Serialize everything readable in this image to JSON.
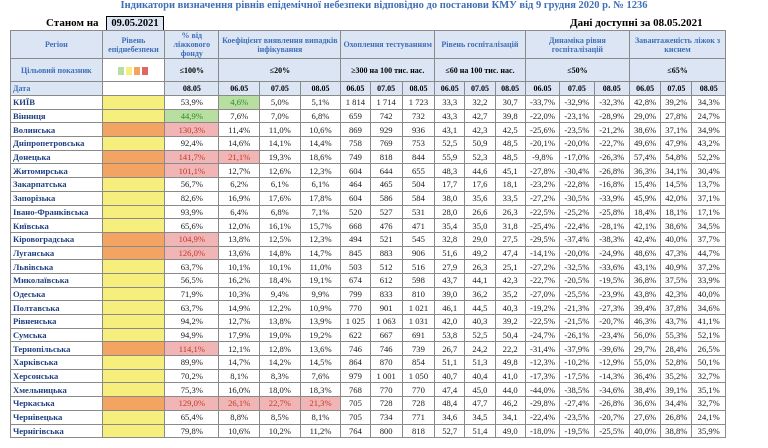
{
  "header": {
    "title": "Індикатори визначення рівнів епідемічної небезпеки відповідно до постанови КМУ від 9 грудня 2020 р. № 1236",
    "as_of_label": "Станом на",
    "as_of_date": "09.05.2021",
    "data_available_label": "Дані доступні за",
    "data_available_date": "08.05.2021"
  },
  "columns": {
    "region": "Регіон",
    "level": "Рівень епіднебезпеки",
    "beds_pct": "% від ліжкового фонду",
    "detection_rate": "Коефіцієнт виявлення випадків інфікування",
    "testing": "Охоплення тестуванням",
    "hospitalization": "Рівень госпіталізацій",
    "hosp_dynamics": "Динаміка рівня госпіталізацій",
    "oxygen_beds": "Завантаженість ліжок з киснем"
  },
  "target_row": {
    "label": "Цільовий показник",
    "beds_pct": "≤100%",
    "detection_rate": "≤20%",
    "testing": "≥300 на 100 тис. нас.",
    "hospitalization": "≤60 на 100 тис. нас.",
    "hosp_dynamics": "≤50%",
    "oxygen_beds": "≤65%"
  },
  "date_row": {
    "label": "Дата",
    "beds_pct": "08.05",
    "dates": [
      "06.05",
      "07.05",
      "08.05"
    ]
  },
  "swatch_colors": [
    "#b9dea1",
    "#f6ee7d",
    "#f4a462",
    "#e06666"
  ],
  "level_colors": {
    "y": "#f6ee7d",
    "o": "#f4a462"
  },
  "rows": [
    {
      "region": "КИЇВ",
      "level": "y",
      "beds": "53,9%",
      "det": [
        "4,6%",
        "5,0%",
        "5,1%"
      ],
      "test": [
        "1 814",
        "1 714",
        "1 723"
      ],
      "hosp": [
        "33,3",
        "32,2",
        "30,7"
      ],
      "dyn": [
        "-33,7%",
        "-32,9%",
        "-32,3%"
      ],
      "oxy": [
        "42,8%",
        "39,2%",
        "34,3%"
      ],
      "hl": {
        "det0": "g"
      }
    },
    {
      "region": "Вінниця",
      "level": "y",
      "beds": "44,9%",
      "det": [
        "7,6%",
        "7,0%",
        "6,8%"
      ],
      "test": [
        "659",
        "742",
        "732"
      ],
      "hosp": [
        "43,3",
        "42,7",
        "39,8"
      ],
      "dyn": [
        "-22,0%",
        "-23,1%",
        "-28,9%"
      ],
      "oxy": [
        "29,0%",
        "27,8%",
        "24,7%"
      ],
      "hl": {
        "beds": "g"
      }
    },
    {
      "region": "Волинська",
      "level": "o",
      "beds": "130,3%",
      "det": [
        "11,4%",
        "11,0%",
        "10,6%"
      ],
      "test": [
        "869",
        "929",
        "936"
      ],
      "hosp": [
        "43,1",
        "42,3",
        "42,5"
      ],
      "dyn": [
        "-25,6%",
        "-23,5%",
        "-21,2%"
      ],
      "oxy": [
        "38,6%",
        "37,1%",
        "34,9%"
      ],
      "hl": {
        "beds": "r"
      }
    },
    {
      "region": "Дніпропетровська",
      "level": "y",
      "beds": "92,4%",
      "det": [
        "14,6%",
        "14,1%",
        "14,4%"
      ],
      "test": [
        "758",
        "769",
        "753"
      ],
      "hosp": [
        "52,5",
        "50,9",
        "48,5"
      ],
      "dyn": [
        "-20,1%",
        "-20,0%",
        "-22,7%"
      ],
      "oxy": [
        "49,6%",
        "47,9%",
        "43,2%"
      ],
      "hl": {}
    },
    {
      "region": "Донецька",
      "level": "o",
      "beds": "141,7%",
      "det": [
        "21,1%",
        "19,3%",
        "18,6%"
      ],
      "test": [
        "749",
        "818",
        "844"
      ],
      "hosp": [
        "55,9",
        "52,3",
        "48,5"
      ],
      "dyn": [
        "-9,8%",
        "-17,0%",
        "-26,3%"
      ],
      "oxy": [
        "57,4%",
        "54,8%",
        "52,2%"
      ],
      "hl": {
        "beds": "r",
        "det0": "r"
      }
    },
    {
      "region": "Житомирська",
      "level": "o",
      "beds": "101,1%",
      "det": [
        "12,7%",
        "12,6%",
        "12,3%"
      ],
      "test": [
        "604",
        "644",
        "655"
      ],
      "hosp": [
        "48,3",
        "44,6",
        "45,1"
      ],
      "dyn": [
        "-27,8%",
        "-30,4%",
        "-26,8%"
      ],
      "oxy": [
        "36,3%",
        "34,1%",
        "30,4%"
      ],
      "hl": {
        "beds": "r"
      }
    },
    {
      "region": "Закарпатська",
      "level": "y",
      "beds": "56,7%",
      "det": [
        "6,2%",
        "6,1%",
        "6,1%"
      ],
      "test": [
        "464",
        "465",
        "504"
      ],
      "hosp": [
        "17,7",
        "17,6",
        "18,1"
      ],
      "dyn": [
        "-23,2%",
        "-22,8%",
        "-16,8%"
      ],
      "oxy": [
        "15,4%",
        "14,5%",
        "13,7%"
      ],
      "hl": {}
    },
    {
      "region": "Запорізька",
      "level": "y",
      "beds": "82,6%",
      "det": [
        "16,9%",
        "17,6%",
        "17,8%"
      ],
      "test": [
        "604",
        "586",
        "584"
      ],
      "hosp": [
        "38,0",
        "35,6",
        "33,5"
      ],
      "dyn": [
        "-27,2%",
        "-30,5%",
        "-33,9%"
      ],
      "oxy": [
        "45,9%",
        "42,0%",
        "37,1%"
      ],
      "hl": {}
    },
    {
      "region": "Івано-Франківська",
      "level": "y",
      "beds": "93,9%",
      "det": [
        "6,4%",
        "6,8%",
        "7,1%"
      ],
      "test": [
        "520",
        "527",
        "531"
      ],
      "hosp": [
        "28,0",
        "26,6",
        "26,3"
      ],
      "dyn": [
        "-22,5%",
        "-25,2%",
        "-25,8%"
      ],
      "oxy": [
        "18,4%",
        "18,1%",
        "17,1%"
      ],
      "hl": {}
    },
    {
      "region": "Київська",
      "level": "y",
      "beds": "65,6%",
      "det": [
        "12,0%",
        "16,1%",
        "15,7%"
      ],
      "test": [
        "668",
        "476",
        "471"
      ],
      "hosp": [
        "35,4",
        "35,0",
        "31,8"
      ],
      "dyn": [
        "-25,4%",
        "-22,4%",
        "-28,1%"
      ],
      "oxy": [
        "42,1%",
        "38,6%",
        "34,5%"
      ],
      "hl": {}
    },
    {
      "region": "Кіровоградська",
      "level": "o",
      "beds": "104,9%",
      "det": [
        "13,8%",
        "12,5%",
        "12,3%"
      ],
      "test": [
        "494",
        "521",
        "545"
      ],
      "hosp": [
        "32,8",
        "29,0",
        "27,5"
      ],
      "dyn": [
        "-29,5%",
        "-37,4%",
        "-38,3%"
      ],
      "oxy": [
        "42,4%",
        "40,0%",
        "37,7%"
      ],
      "hl": {
        "beds": "r"
      }
    },
    {
      "region": "Луганська",
      "level": "o",
      "beds": "126,0%",
      "det": [
        "13,6%",
        "14,8%",
        "14,7%"
      ],
      "test": [
        "845",
        "883",
        "906"
      ],
      "hosp": [
        "51,6",
        "49,2",
        "47,4"
      ],
      "dyn": [
        "-14,1%",
        "-20,0%",
        "-24,9%"
      ],
      "oxy": [
        "48,6%",
        "47,3%",
        "44,7%"
      ],
      "hl": {
        "beds": "r"
      }
    },
    {
      "region": "Львівська",
      "level": "y",
      "beds": "63,7%",
      "det": [
        "10,1%",
        "10,1%",
        "11,0%"
      ],
      "test": [
        "503",
        "512",
        "516"
      ],
      "hosp": [
        "27,9",
        "26,3",
        "25,1"
      ],
      "dyn": [
        "-27,2%",
        "-32,5%",
        "-33,6%"
      ],
      "oxy": [
        "43,1%",
        "40,9%",
        "37,2%"
      ],
      "hl": {}
    },
    {
      "region": "Миколаївська",
      "level": "y",
      "beds": "56,5%",
      "det": [
        "16,2%",
        "18,4%",
        "19,1%"
      ],
      "test": [
        "674",
        "612",
        "598"
      ],
      "hosp": [
        "43,7",
        "44,1",
        "42,3"
      ],
      "dyn": [
        "-22,7%",
        "-20,5%",
        "-19,5%"
      ],
      "oxy": [
        "36,8%",
        "37,5%",
        "33,9%"
      ],
      "hl": {}
    },
    {
      "region": "Одеська",
      "level": "y",
      "beds": "71,9%",
      "det": [
        "10,3%",
        "9,4%",
        "9,9%"
      ],
      "test": [
        "799",
        "833",
        "810"
      ],
      "hosp": [
        "39,0",
        "36,2",
        "35,2"
      ],
      "dyn": [
        "-27,0%",
        "-25,5%",
        "-23,9%"
      ],
      "oxy": [
        "43,8%",
        "42,3%",
        "40,0%"
      ],
      "hl": {}
    },
    {
      "region": "Полтавська",
      "level": "y",
      "beds": "63,7%",
      "det": [
        "14,9%",
        "12,2%",
        "10,9%"
      ],
      "test": [
        "770",
        "901",
        "1 021"
      ],
      "hosp": [
        "46,1",
        "44,5",
        "40,3"
      ],
      "dyn": [
        "-19,2%",
        "-21,3%",
        "-27,3%"
      ],
      "oxy": [
        "39,4%",
        "37,8%",
        "34,6%"
      ],
      "hl": {}
    },
    {
      "region": "Рівненська",
      "level": "y",
      "beds": "94,2%",
      "det": [
        "12,7%",
        "13,8%",
        "13,9%"
      ],
      "test": [
        "1 025",
        "1 063",
        "1 031"
      ],
      "hosp": [
        "42,0",
        "40,3",
        "39,2"
      ],
      "dyn": [
        "-22,5%",
        "-21,5%",
        "-20,7%"
      ],
      "oxy": [
        "46,3%",
        "43,7%",
        "41,1%"
      ],
      "hl": {}
    },
    {
      "region": "Сумська",
      "level": "y",
      "beds": "94,9%",
      "det": [
        "17,9%",
        "19,0%",
        "19,2%"
      ],
      "test": [
        "622",
        "667",
        "691"
      ],
      "hosp": [
        "53,8",
        "52,5",
        "50,4"
      ],
      "dyn": [
        "-24,7%",
        "-26,1%",
        "-23,4%"
      ],
      "oxy": [
        "56,0%",
        "55,3%",
        "52,1%"
      ],
      "hl": {}
    },
    {
      "region": "Тернопільська",
      "level": "o",
      "beds": "114,1%",
      "det": [
        "12,1%",
        "12,8%",
        "13,6%"
      ],
      "test": [
        "746",
        "746",
        "739"
      ],
      "hosp": [
        "26,7",
        "24,2",
        "22,2"
      ],
      "dyn": [
        "-31,4%",
        "-37,9%",
        "-39,6%"
      ],
      "oxy": [
        "29,7%",
        "28,4%",
        "26,5%"
      ],
      "hl": {
        "beds": "r"
      }
    },
    {
      "region": "Харківська",
      "level": "y",
      "beds": "89,9%",
      "det": [
        "14,7%",
        "14,2%",
        "14,5%"
      ],
      "test": [
        "864",
        "870",
        "854"
      ],
      "hosp": [
        "51,1",
        "51,3",
        "49,8"
      ],
      "dyn": [
        "-12,3%",
        "-10,2%",
        "-12,9%"
      ],
      "oxy": [
        "55,0%",
        "52,8%",
        "50,1%"
      ],
      "hl": {}
    },
    {
      "region": "Херсонська",
      "level": "y",
      "beds": "70,2%",
      "det": [
        "8,1%",
        "8,3%",
        "7,6%"
      ],
      "test": [
        "979",
        "1 001",
        "1 050"
      ],
      "hosp": [
        "40,7",
        "40,4",
        "41,0"
      ],
      "dyn": [
        "-17,3%",
        "-17,5%",
        "-14,3%"
      ],
      "oxy": [
        "36,4%",
        "35,2%",
        "32,7%"
      ],
      "hl": {}
    },
    {
      "region": "Хмельницька",
      "level": "y",
      "beds": "75,3%",
      "det": [
        "16,0%",
        "18,0%",
        "18,3%"
      ],
      "test": [
        "768",
        "770",
        "770"
      ],
      "hosp": [
        "47,4",
        "45,0",
        "44,0"
      ],
      "dyn": [
        "-44,0%",
        "-38,5%",
        "-34,6%"
      ],
      "oxy": [
        "38,4%",
        "39,1%",
        "35,1%"
      ],
      "hl": {}
    },
    {
      "region": "Черкаська",
      "level": "o",
      "beds": "129,0%",
      "det": [
        "26,1%",
        "22,7%",
        "21,3%"
      ],
      "test": [
        "705",
        "728",
        "728"
      ],
      "hosp": [
        "48,4",
        "47,7",
        "46,2"
      ],
      "dyn": [
        "-29,8%",
        "-27,4%",
        "-26,8%"
      ],
      "oxy": [
        "36,6%",
        "34,4%",
        "32,7%"
      ],
      "hl": {
        "beds": "r",
        "det0": "r",
        "det1": "r",
        "det2": "r"
      }
    },
    {
      "region": "Чернівецька",
      "level": "y",
      "beds": "65,4%",
      "det": [
        "8,8%",
        "8,5%",
        "8,1%"
      ],
      "test": [
        "705",
        "734",
        "771"
      ],
      "hosp": [
        "34,6",
        "34,5",
        "34,1"
      ],
      "dyn": [
        "-22,4%",
        "-23,5%",
        "-20,7%"
      ],
      "oxy": [
        "27,6%",
        "26,8%",
        "24,1%"
      ],
      "hl": {}
    },
    {
      "region": "Чернігівська",
      "level": "y",
      "beds": "79,8%",
      "det": [
        "10,6%",
        "10,2%",
        "11,2%"
      ],
      "test": [
        "764",
        "800",
        "818"
      ],
      "hosp": [
        "52,7",
        "51,4",
        "49,0"
      ],
      "dyn": [
        "-18,0%",
        "-19,5%",
        "-25,5%"
      ],
      "oxy": [
        "40,0%",
        "38,8%",
        "35,9%"
      ],
      "hl": {}
    }
  ]
}
